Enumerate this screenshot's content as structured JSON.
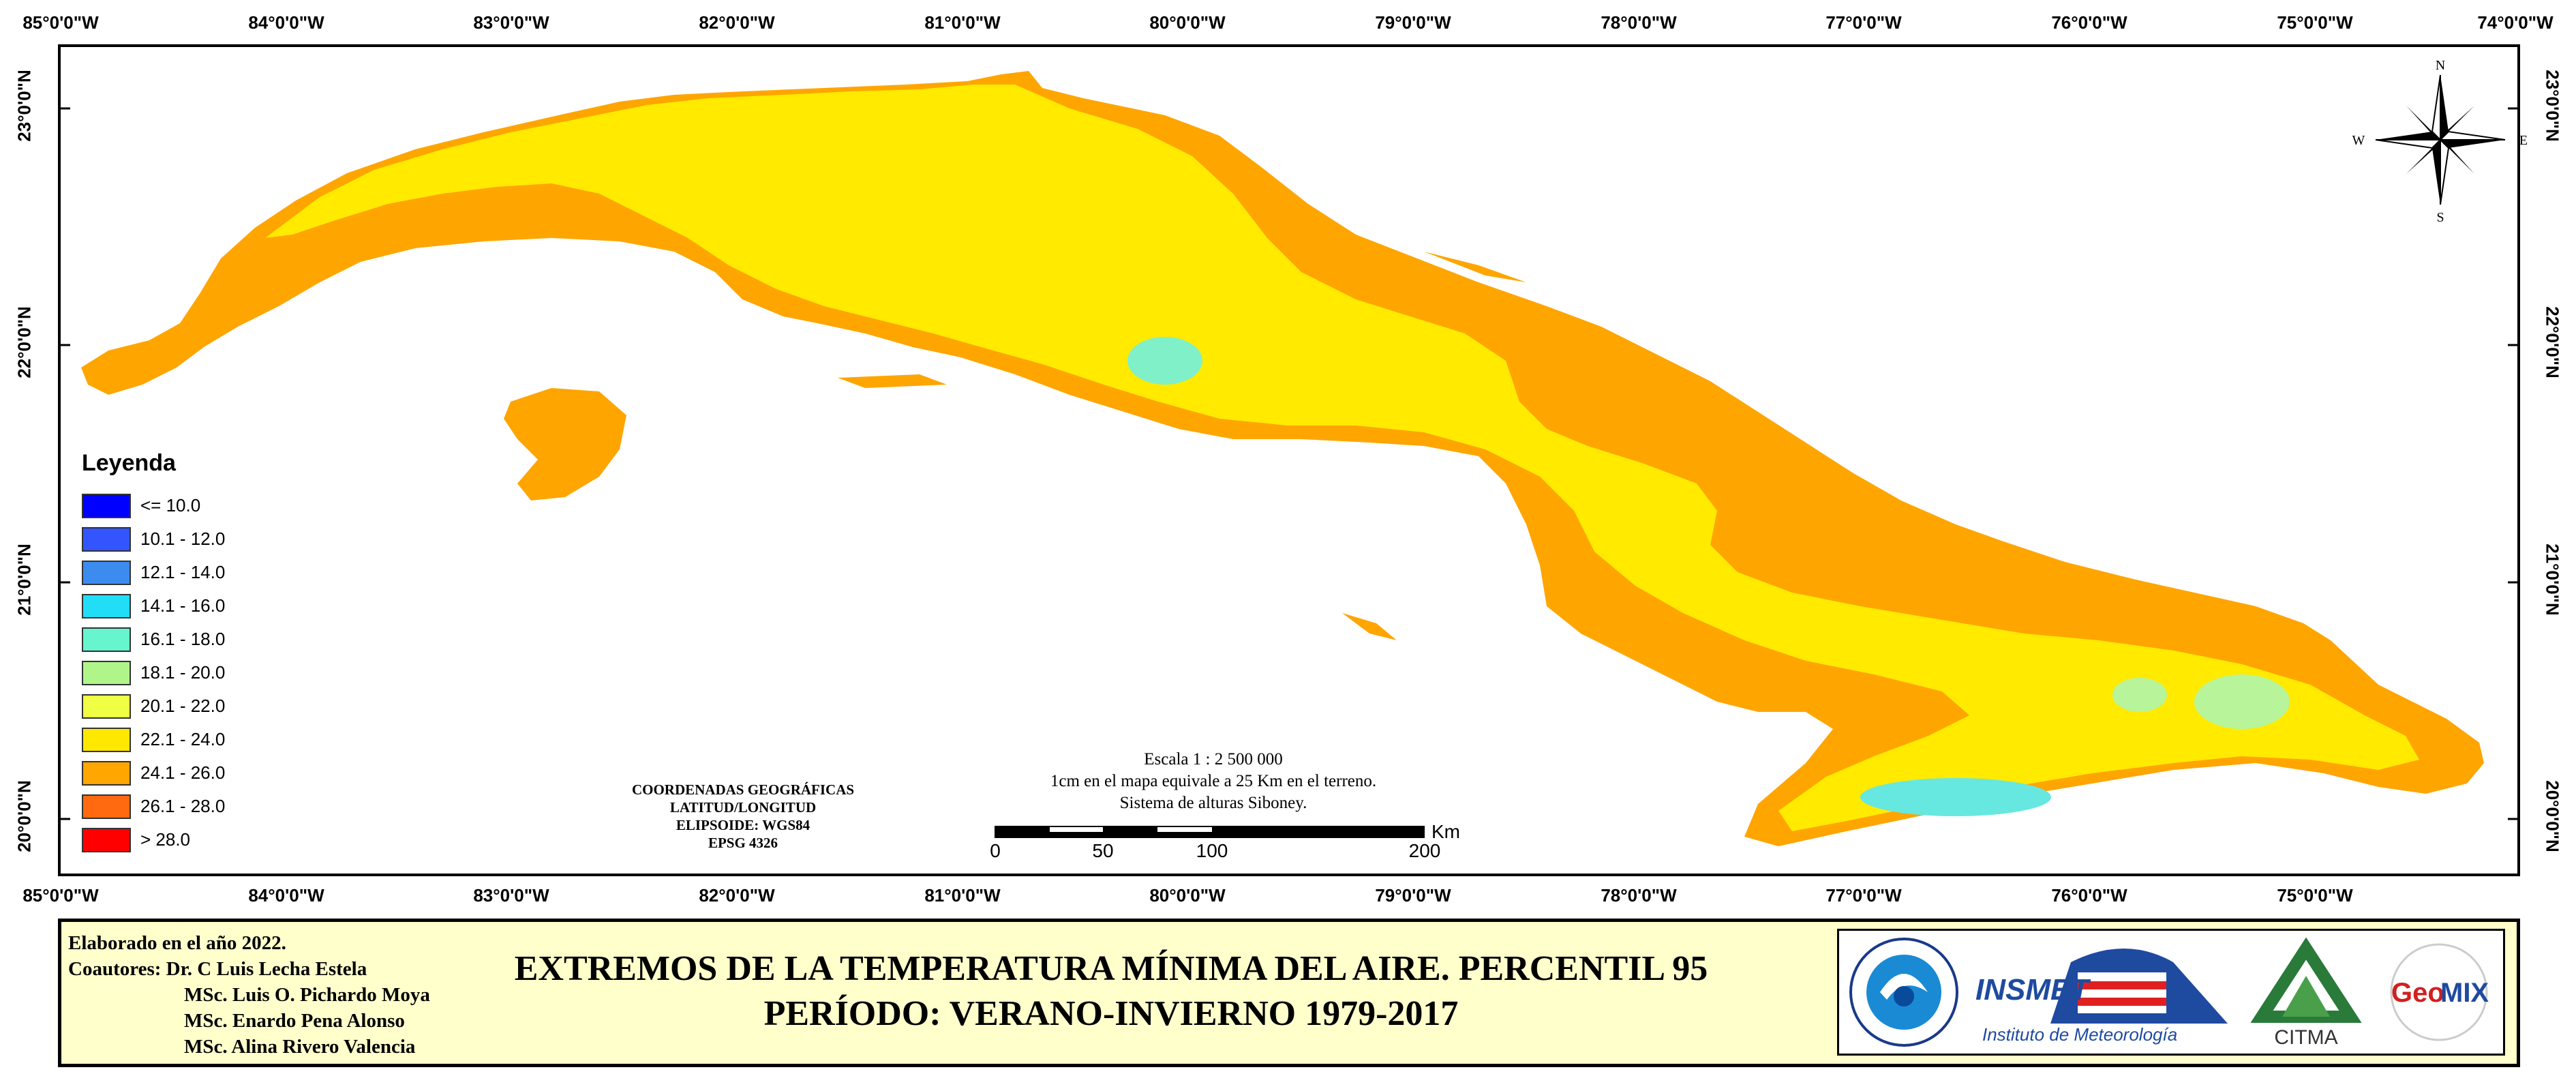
{
  "map": {
    "top_ticks": [
      "85°0'0\"W",
      "84°0'0\"W",
      "83°0'0\"W",
      "82°0'0\"W",
      "81°0'0\"W",
      "80°0'0\"W",
      "79°0'0\"W",
      "78°0'0\"W",
      "77°0'0\"W",
      "76°0'0\"W",
      "75°0'0\"W",
      "74°0'0\"W"
    ],
    "bottom_ticks": [
      "85°0'0\"W",
      "84°0'0\"W",
      "83°0'0\"W",
      "82°0'0\"W",
      "81°0'0\"W",
      "80°0'0\"W",
      "79°0'0\"W",
      "78°0'0\"W",
      "77°0'0\"W",
      "76°0'0\"W",
      "75°0'0\"W"
    ],
    "lat_ticks": [
      "23°0'0\"N",
      "22°0'0\"N",
      "21°0'0\"N",
      "20°0'0\"N"
    ],
    "colors": {
      "sea": "#ffffff",
      "dominant_land": "#ffea00",
      "coastal_band": "#ffa500",
      "highland_spots": "#80f0c8"
    }
  },
  "legend": {
    "title": "Leyenda",
    "items": [
      {
        "label": "<= 10.0",
        "color": "#0000ff"
      },
      {
        "label": "10.1 - 12.0",
        "color": "#3355ff"
      },
      {
        "label": "12.1 - 14.0",
        "color": "#3c8cf0"
      },
      {
        "label": "14.1 - 16.0",
        "color": "#22ddf6"
      },
      {
        "label": "16.1 - 18.0",
        "color": "#66f5cc"
      },
      {
        "label": "18.1 - 20.0",
        "color": "#b0f58a"
      },
      {
        "label": "20.1 - 22.0",
        "color": "#eeff44"
      },
      {
        "label": "22.1 - 24.0",
        "color": "#ffe800"
      },
      {
        "label": "24.1 - 26.0",
        "color": "#ffa600"
      },
      {
        "label": "26.1 - 28.0",
        "color": "#ff6a10"
      },
      {
        "label": "> 28.0",
        "color": "#ff0000"
      }
    ]
  },
  "coords": {
    "line1": "COORDENADAS GEOGRÁFICAS",
    "line2": "LATITUD/LONGITUD",
    "line3": "ELIPSOIDE: WGS84",
    "line4": "EPSG 4326"
  },
  "scale": {
    "line1": "Escala 1 : 2 500 000",
    "line2": "1cm en el mapa equivale a 25 Km en el terreno.",
    "line3": "Sistema de alturas Siboney.",
    "unit": "Km",
    "labels": [
      "0",
      "50",
      "100",
      "200"
    ]
  },
  "compass": {
    "n": "N",
    "s": "S",
    "e": "E",
    "w": "W"
  },
  "footer": {
    "credits": [
      "Elaborado en el año 2022.",
      "Coautores: Dr. C Luis Lecha Estela",
      "MSc. Luis O. Pichardo Moya",
      "MSc. Enardo Pena Alonso",
      "MSc. Alina Rivero Valencia"
    ],
    "title_line1": "EXTREMOS DE LA TEMPERATURA MÍNIMA DEL AIRE. PERCENTIL 95",
    "title_line2": "PERÍODO: VERANO-INVIERNO 1979-2017",
    "logos": {
      "insmet": "INSMET",
      "insmet_sub": "Instituto de Meteorología",
      "citma": "CITMA",
      "geomix_a": "Geo",
      "geomix_b": "MIX"
    }
  }
}
